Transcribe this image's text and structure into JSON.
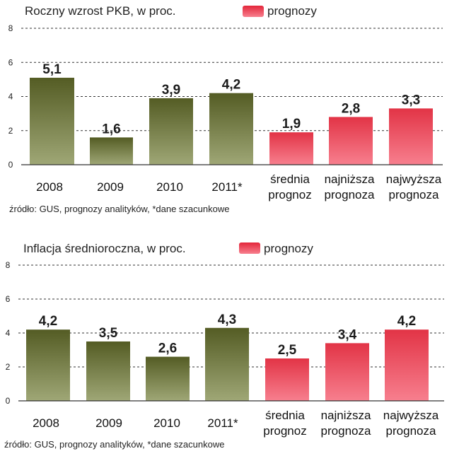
{
  "colors": {
    "actual_top": "#545c24",
    "actual_bottom": "#9fa776",
    "forecast_top": "#e23446",
    "forecast_bottom": "#f77f8e",
    "legend_forecast": "#e3263a"
  },
  "chart_data": [
    {
      "type": "bar",
      "title": "Roczny wzrost PKB, w proc.",
      "legend": {
        "label": "prognozy",
        "placement": "top"
      },
      "ylim": [
        0,
        8
      ],
      "yticks": [
        "0",
        "2",
        "4",
        "6",
        "8"
      ],
      "categories": [
        [
          "2008"
        ],
        [
          "2009"
        ],
        [
          "2010"
        ],
        [
          "2011*"
        ],
        [
          "średnia",
          "prognoz"
        ],
        [
          "najniższa",
          "prognoza"
        ],
        [
          "najwyższa",
          "prognoza"
        ]
      ],
      "values": [
        5.1,
        1.6,
        3.9,
        4.2,
        1.9,
        2.8,
        3.3
      ],
      "value_labels": [
        "5,1",
        "1,6",
        "3,9",
        "4,2",
        "1,9",
        "2,8",
        "3,3"
      ],
      "kinds": [
        "actual",
        "actual",
        "actual",
        "actual",
        "forecast",
        "forecast",
        "forecast"
      ],
      "grid": true,
      "source": "źródło: GUS, prognozy analityków, *dane szacunkowe"
    },
    {
      "type": "bar",
      "title": "Inflacja średnioroczna, w proc.",
      "legend": {
        "label": "prognozy",
        "placement": "top"
      },
      "ylim": [
        0,
        8
      ],
      "yticks": [
        "0",
        "2",
        "4",
        "6",
        "8"
      ],
      "categories": [
        [
          "2008"
        ],
        [
          "2009"
        ],
        [
          "2010"
        ],
        [
          "2011*"
        ],
        [
          "średnia",
          "prognoz"
        ],
        [
          "najniższa",
          "prognoza"
        ],
        [
          "najwyższa",
          "prognoza"
        ]
      ],
      "values": [
        4.2,
        3.5,
        2.6,
        4.3,
        2.5,
        3.4,
        4.2
      ],
      "value_labels": [
        "4,2",
        "3,5",
        "2,6",
        "4,3",
        "2,5",
        "3,4",
        "4,2"
      ],
      "kinds": [
        "actual",
        "actual",
        "actual",
        "actual",
        "forecast",
        "forecast",
        "forecast"
      ],
      "grid": true,
      "source": "źródło: GUS, prognozy analityków, *dane szacunkowe"
    }
  ]
}
